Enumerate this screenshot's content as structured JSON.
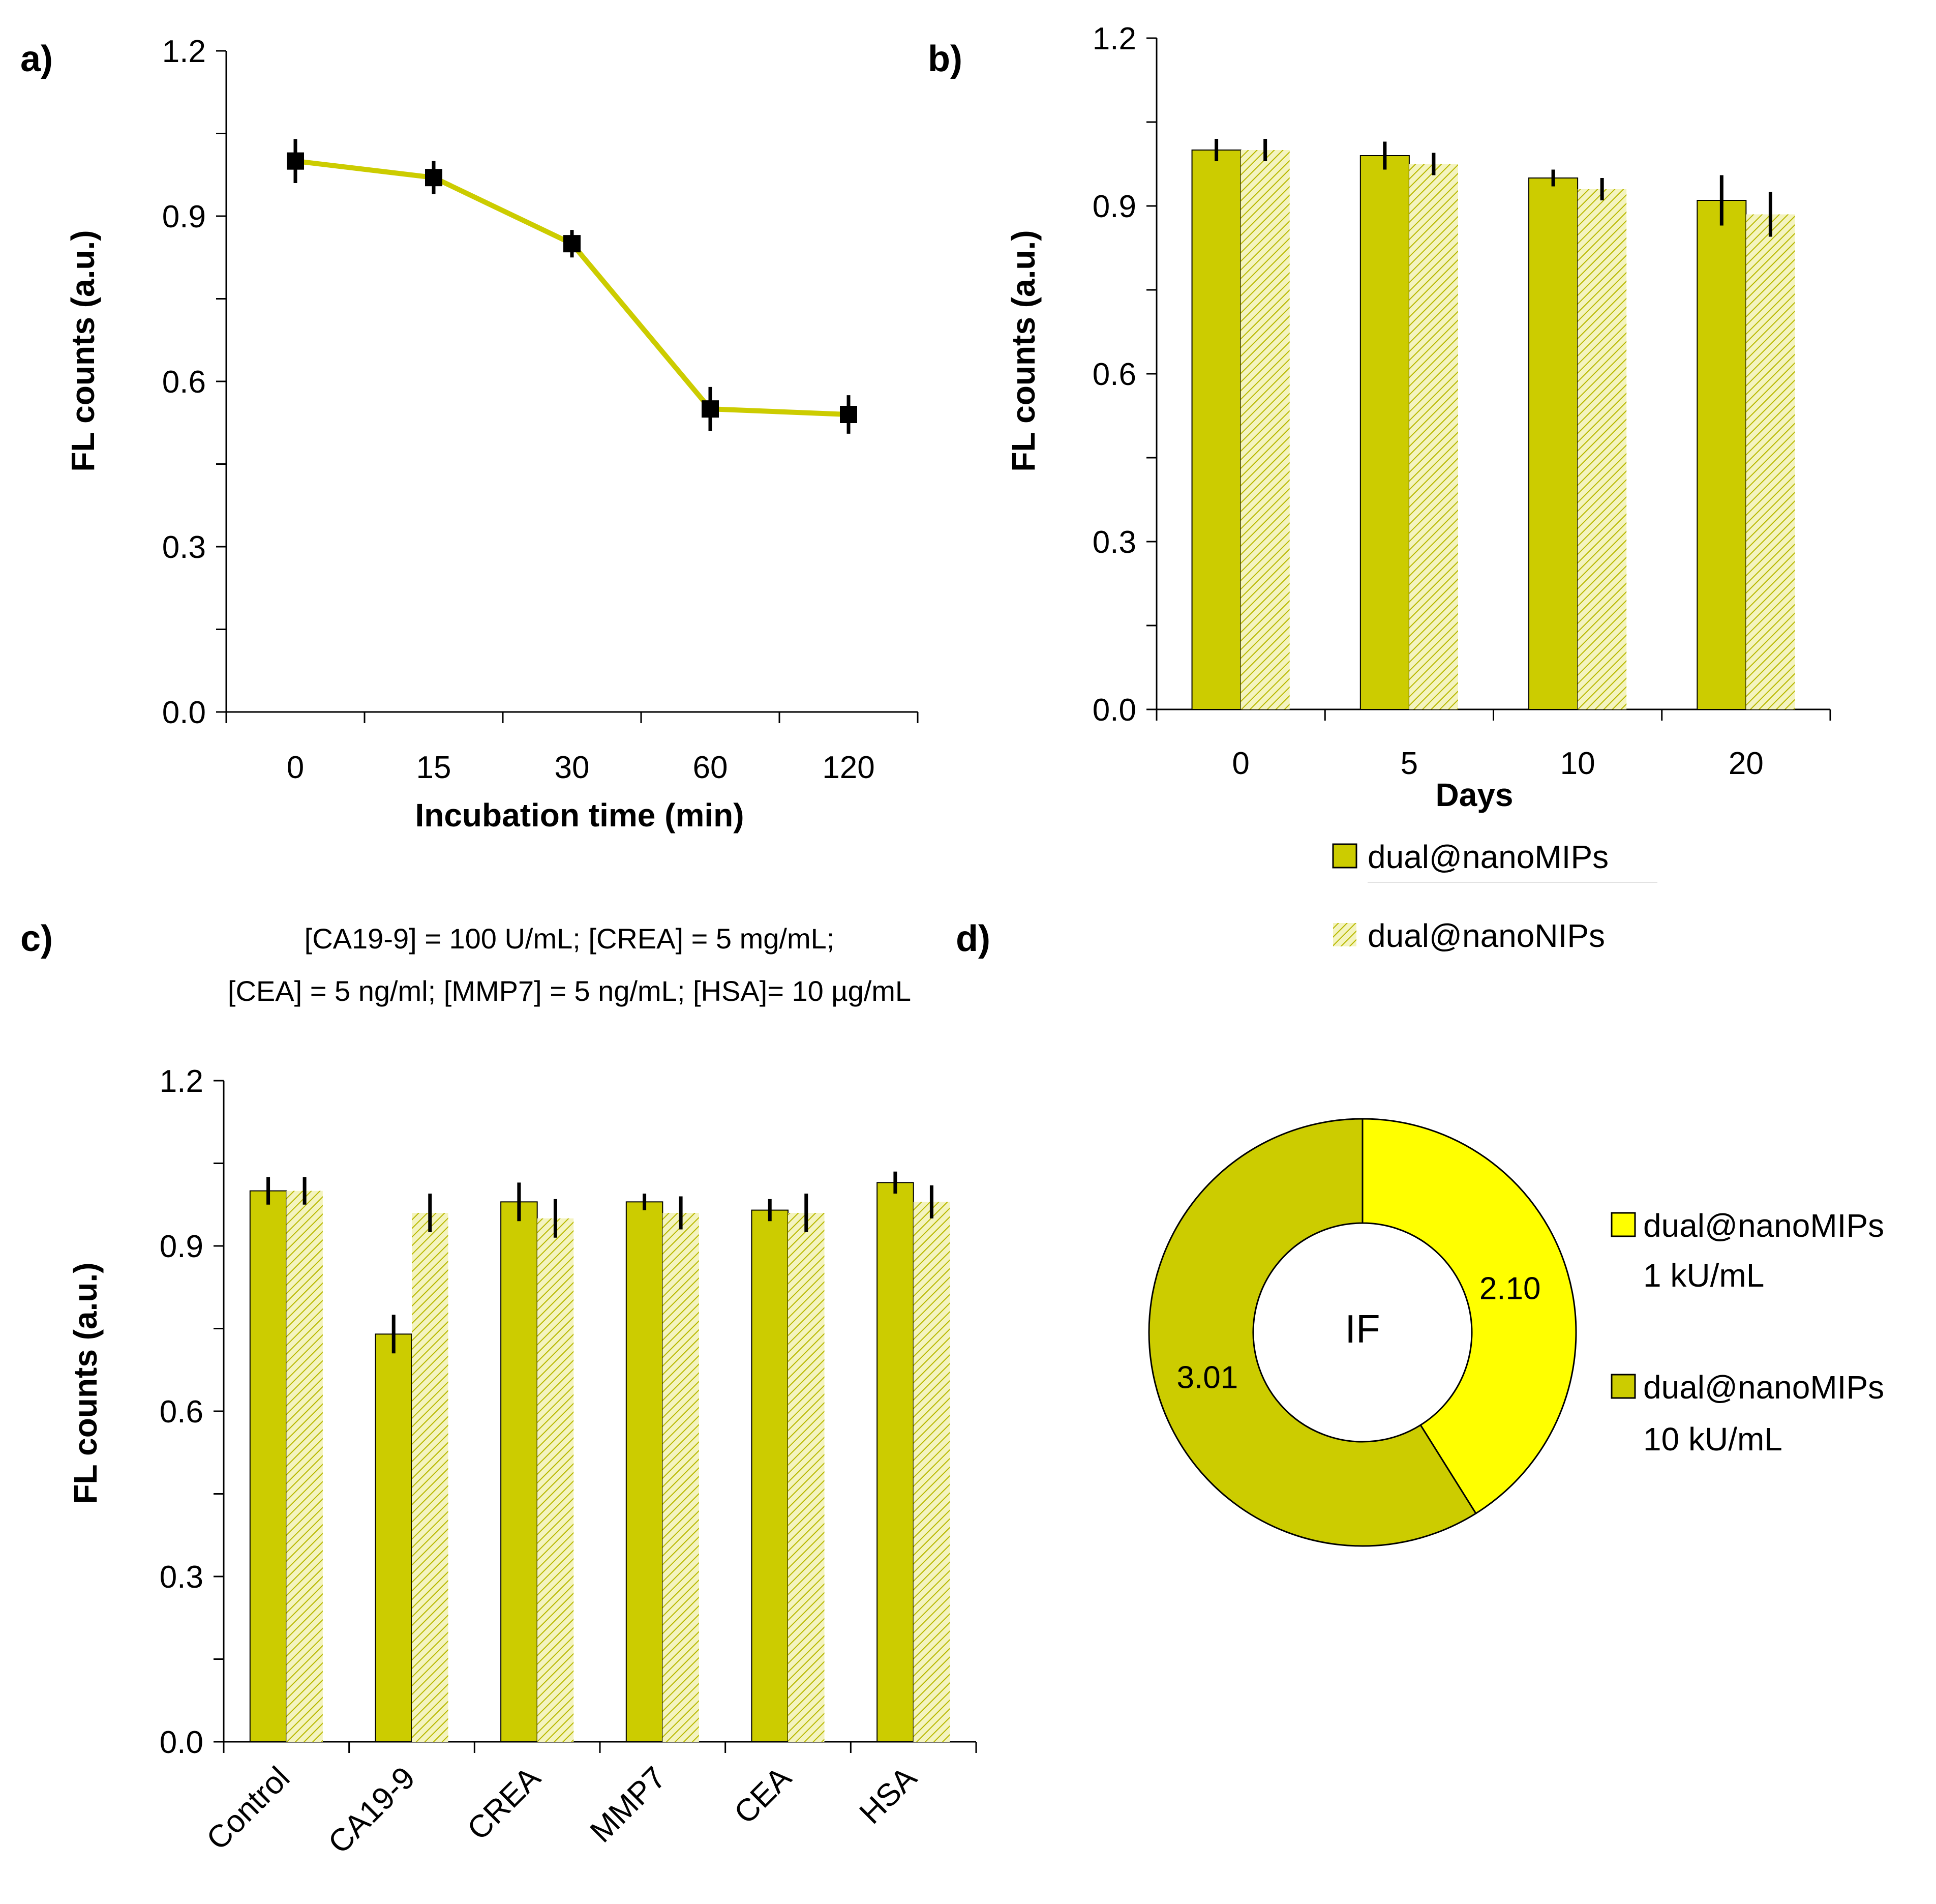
{
  "colors": {
    "olive": "#cccc00",
    "yellow": "#ffff00",
    "line": "#cccc00",
    "hatch_bg": "#f4f4c0",
    "hatch_line": "#b8b800",
    "axis": "#000000"
  },
  "chart_data": [
    {
      "id": "a",
      "panel_label": "a)",
      "type": "line",
      "categories": [
        "0",
        "15",
        "30",
        "60",
        "120"
      ],
      "series": [
        {
          "name": "FL counts",
          "values": [
            1.0,
            0.97,
            0.85,
            0.55,
            0.54
          ],
          "errors": [
            0.04,
            0.03,
            0.025,
            0.04,
            0.035
          ]
        }
      ],
      "xlabel": "Incubation time (min)",
      "ylabel": "FL counts (a.u.)",
      "ylim": [
        0,
        1.2
      ],
      "yticks": [
        "0.0",
        "0.3",
        "0.6",
        "0.9",
        "1.2"
      ],
      "ytick_values": [
        0,
        0.3,
        0.6,
        0.9,
        1.2
      ]
    },
    {
      "id": "b",
      "panel_label": "b)",
      "type": "bar",
      "categories": [
        "0",
        "5",
        "10",
        "20"
      ],
      "series": [
        {
          "name": "dual@nanoMIPs",
          "pattern": "solid",
          "values": [
            1.0,
            0.99,
            0.95,
            0.91
          ],
          "errors": [
            0.02,
            0.025,
            0.015,
            0.045
          ]
        },
        {
          "name": "dual@nanoNIPs",
          "pattern": "hatched",
          "values": [
            1.0,
            0.975,
            0.93,
            0.885
          ],
          "errors": [
            0.02,
            0.02,
            0.02,
            0.04
          ]
        }
      ],
      "xlabel": "Days",
      "ylabel": "FL counts (a.u.)",
      "ylim": [
        0,
        1.2
      ],
      "yticks": [
        "0.0",
        "0.3",
        "0.6",
        "0.9",
        "1.2"
      ],
      "ytick_values": [
        0,
        0.3,
        0.6,
        0.9,
        1.2
      ],
      "legend": [
        "dual@nanoMIPs",
        "dual@nanoNIPs"
      ]
    },
    {
      "id": "c",
      "panel_label": "c)",
      "type": "bar",
      "categories": [
        "Control",
        "CA19-9",
        "CREA",
        "MMP7",
        "CEA",
        "HSA"
      ],
      "series": [
        {
          "name": "dual@nanoMIPs",
          "pattern": "solid",
          "values": [
            1.0,
            0.74,
            0.98,
            0.98,
            0.965,
            1.015
          ],
          "errors": [
            0.025,
            0.035,
            0.035,
            0.015,
            0.02,
            0.02
          ]
        },
        {
          "name": "dual@nanoNIPs",
          "pattern": "hatched",
          "values": [
            1.0,
            0.96,
            0.95,
            0.96,
            0.96,
            0.98
          ],
          "errors": [
            0.025,
            0.035,
            0.035,
            0.03,
            0.035,
            0.03
          ]
        }
      ],
      "xlabel": "",
      "ylabel": "FL counts (a.u.)",
      "ylim": [
        0,
        1.2
      ],
      "yticks": [
        "0.0",
        "0.3",
        "0.6",
        "0.9",
        "1.2"
      ],
      "ytick_values": [
        0,
        0.3,
        0.6,
        0.9,
        1.2
      ],
      "annotation_line1": "[CA19-9] = 100 U/mL; [CREA] = 5 mg/mL;",
      "annotation_line2": "[CEA] = 5 ng/ml; [MMP7] = 5 ng/mL; [HSA]= 10 µg/mL"
    },
    {
      "id": "d",
      "panel_label": "d)",
      "type": "pie",
      "variant": "donut",
      "center_label": "IF",
      "slices": [
        {
          "label": "dual@nanoMIPs 1 kU/mL",
          "legend_line1": "dual@nanoMIPs",
          "legend_line2": "1 kU/mL",
          "value": 2.1,
          "value_text": "2.10",
          "color": "#ffff00"
        },
        {
          "label": "dual@nanoMIPs 10 kU/mL",
          "legend_line1": "dual@nanoMIPs",
          "legend_line2": "10 kU/mL",
          "value": 3.01,
          "value_text": "3.01",
          "color": "#cccc00"
        }
      ]
    }
  ]
}
